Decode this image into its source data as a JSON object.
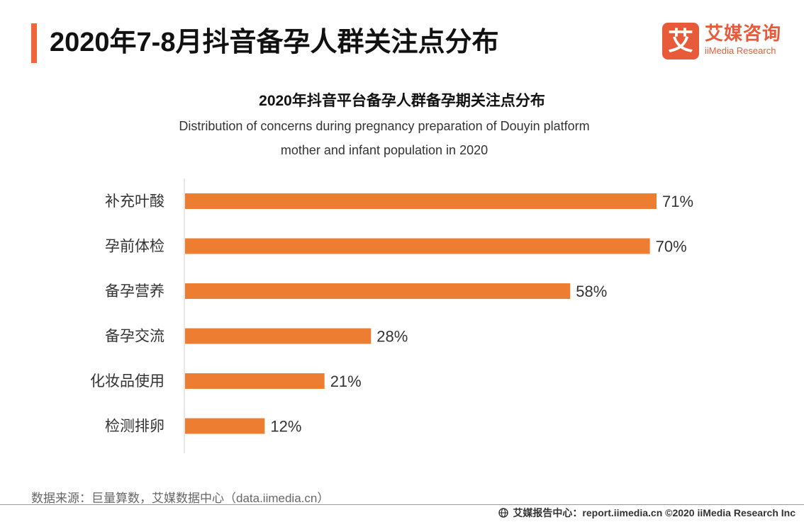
{
  "header": {
    "title": "2020年7-8月抖音备孕人群关注点分布",
    "accent_color": "#f0653a"
  },
  "logo": {
    "mark": "艾",
    "name_cn": "艾媒咨询",
    "name_en": "iiMedia Research",
    "color": "#e85b3a"
  },
  "chart_data": {
    "type": "bar",
    "orientation": "horizontal",
    "title": "2020年抖音平台备孕人群备孕期关注点分布",
    "subtitle_lines": [
      "Distribution of concerns during pregnancy preparation of Douyin platform",
      "mother and infant population in 2020"
    ],
    "categories": [
      "补充叶酸",
      "孕前体检",
      "备孕营养",
      "备孕交流",
      "化妆品使用",
      "检测排卵"
    ],
    "values": [
      71,
      70,
      58,
      28,
      21,
      12
    ],
    "value_labels": [
      "71%",
      "70%",
      "58%",
      "28%",
      "21%",
      "12%"
    ],
    "unit": "%",
    "bar_color": "#ed7d31",
    "xlim": [
      0,
      100
    ]
  },
  "source": "数据来源：巨量算数，艾媒数据中心（data.iimedia.cn）",
  "footer": {
    "icon": "globe-icon",
    "text": "艾媒报告中心：report.iimedia.cn  ©2020  iiMedia Research  Inc"
  }
}
